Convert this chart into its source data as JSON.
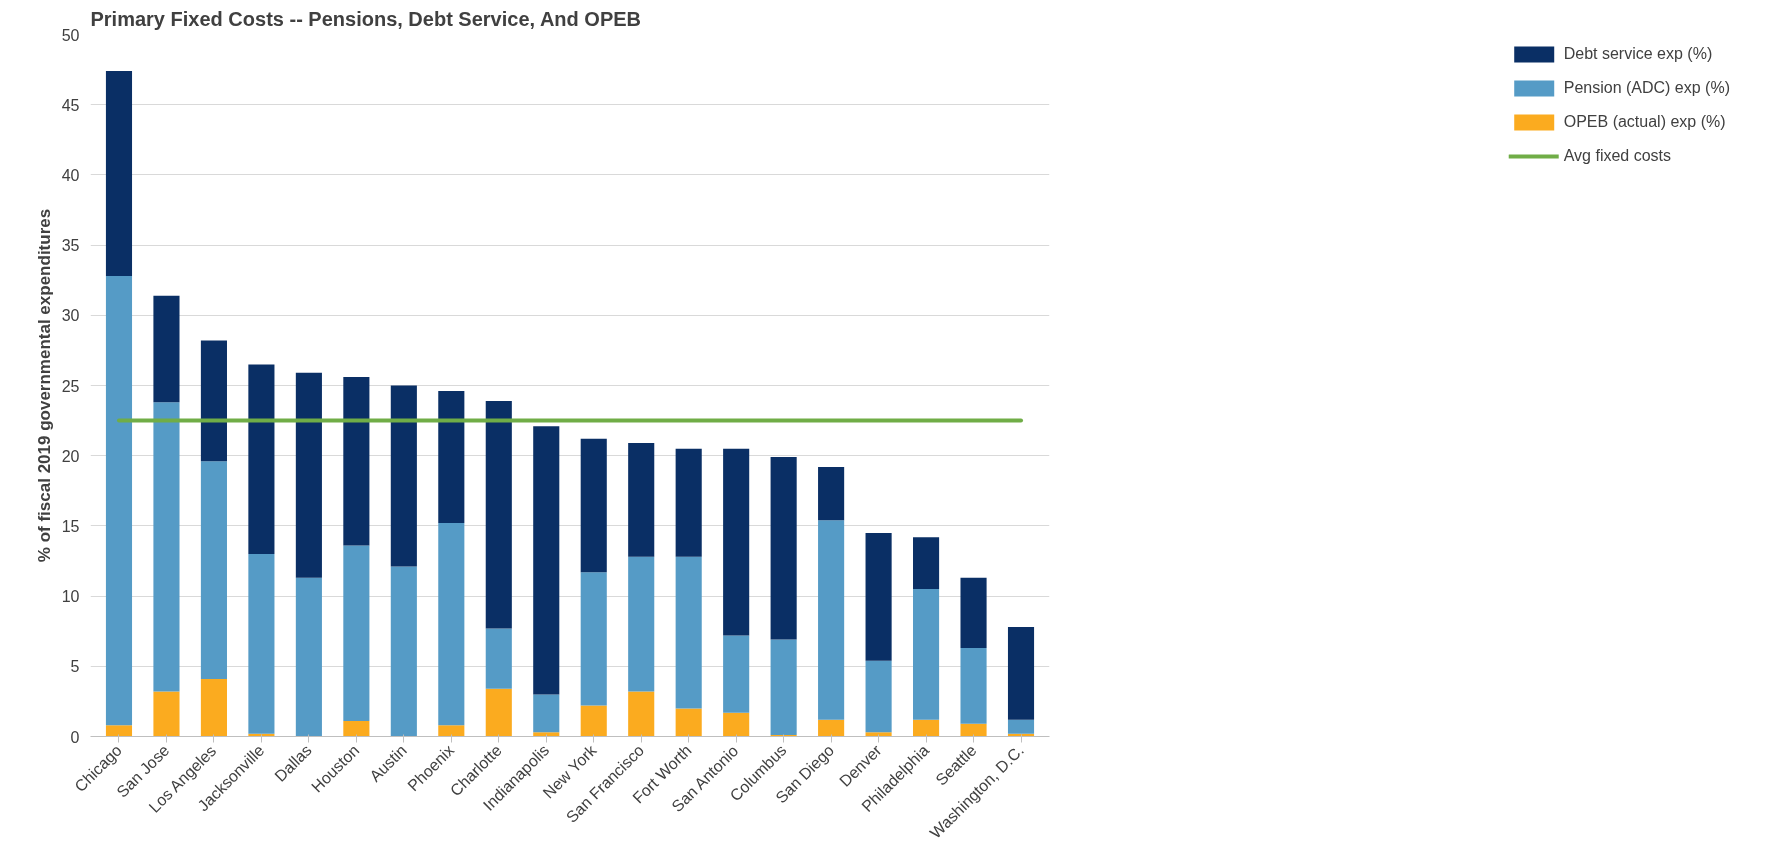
{
  "chart_data": {
    "type": "bar",
    "stacked": true,
    "title": "Primary Fixed Costs -- Pensions, Debt Service, And OPEB",
    "ylabel": "% of fiscal 2019 governmental expenditures",
    "categories": [
      "Chicago",
      "San Jose",
      "Los Angeles",
      "Jacksonville",
      "Dallas",
      "Houston",
      "Austin",
      "Phoenix",
      "Charlotte",
      "Indianapolis",
      "New York",
      "San Francisco",
      "Fort Worth",
      "San Antonio",
      "Columbus",
      "San Diego",
      "Denver",
      "Philadelphia",
      "Seattle",
      "Washington, D.C."
    ],
    "series": [
      {
        "name": "OPEB (actual) exp (%)",
        "color": "#fbab1f",
        "values": [
          0.8,
          3.2,
          4.1,
          0.2,
          0,
          1.1,
          0,
          0.8,
          3.4,
          0.3,
          2.2,
          3.2,
          2.0,
          1.7,
          0.1,
          1.2,
          0.3,
          1.2,
          0.9,
          0.2
        ]
      },
      {
        "name": "Pension (ADC) exp (%)",
        "color": "#559bc6",
        "values": [
          32.0,
          20.6,
          15.5,
          12.8,
          11.3,
          12.5,
          12.1,
          14.4,
          4.3,
          2.7,
          9.5,
          9.6,
          10.8,
          5.5,
          6.8,
          14.2,
          5.1,
          9.3,
          5.4,
          1.0
        ]
      },
      {
        "name": "Debt service exp (%)",
        "color": "#0a2f65",
        "values": [
          14.6,
          7.6,
          8.6,
          13.5,
          14.6,
          12.0,
          12.9,
          9.4,
          16.2,
          19.1,
          9.5,
          8.1,
          7.7,
          13.3,
          13.0,
          3.8,
          9.1,
          3.7,
          5.0,
          6.6
        ]
      },
      {
        "name": "Avg fixed costs",
        "type": "line",
        "color": "#70ad47",
        "values": [
          22.5,
          22.5,
          22.5,
          22.5,
          22.5,
          22.5,
          22.5,
          22.5,
          22.5,
          22.5,
          22.5,
          22.5,
          22.5,
          22.5,
          22.5,
          22.5,
          22.5,
          22.5,
          22.5,
          22.5
        ]
      }
    ],
    "ylim": [
      0,
      50
    ],
    "yticks": [
      0,
      5,
      10,
      15,
      20,
      25,
      30,
      35,
      40,
      45,
      50
    ],
    "grid": "y",
    "legend": "right"
  }
}
